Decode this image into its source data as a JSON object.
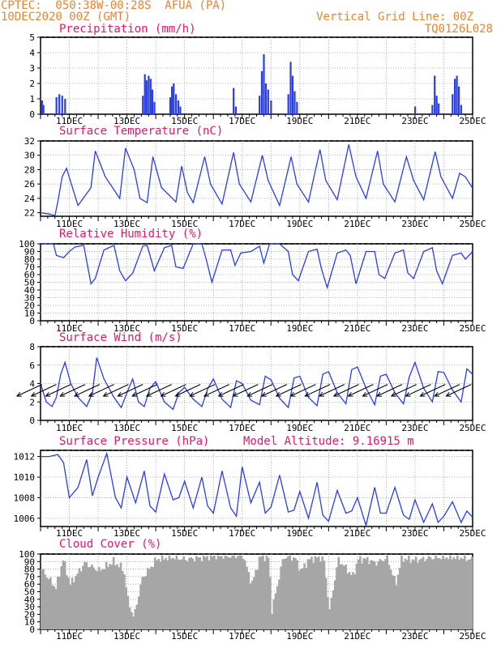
{
  "header": {
    "line1": "CPTEC:  050:38W-00:28S  AFUA (PA)",
    "line2": "10DEC2020 00Z (GMT)",
    "grid_note": "Vertical Grid Line: 00Z",
    "code": "TQ0126L028",
    "altitude_note": "Model Altitude: 9.16915 m"
  },
  "colors": {
    "header": "#e8852f",
    "title": "#e0186c",
    "series": "#2b3fe0",
    "cloud": "#a6a6a6"
  },
  "x_axis": {
    "tick_labels": [
      "11DEC",
      "13DEC",
      "15DEC",
      "17DEC",
      "19DEC",
      "21DEC",
      "23DEC",
      "25DEC"
    ],
    "tick_days": [
      1,
      3,
      5,
      7,
      9,
      11,
      13,
      15
    ],
    "range_days": [
      0,
      15
    ],
    "vertical_grid": "00Z"
  },
  "chart_data": [
    {
      "type": "bar",
      "title": "Precipitation (mm/h)",
      "ylim": [
        0,
        5
      ],
      "yticks": [
        "0",
        "1",
        "2",
        "3",
        "4",
        "5"
      ],
      "grid": true,
      "bars": [
        [
          0.05,
          0.9
        ],
        [
          0.1,
          0.6
        ],
        [
          0.55,
          1.1
        ],
        [
          0.65,
          1.3
        ],
        [
          0.75,
          1.2
        ],
        [
          0.85,
          1.0
        ],
        [
          3.55,
          1.2
        ],
        [
          3.62,
          2.6
        ],
        [
          3.68,
          2.2
        ],
        [
          3.75,
          2.5
        ],
        [
          3.82,
          2.3
        ],
        [
          3.88,
          1.6
        ],
        [
          3.95,
          0.8
        ],
        [
          4.5,
          1.1
        ],
        [
          4.56,
          1.8
        ],
        [
          4.62,
          2.0
        ],
        [
          4.7,
          1.3
        ],
        [
          4.78,
          0.9
        ],
        [
          4.85,
          0.5
        ],
        [
          6.7,
          1.7
        ],
        [
          6.78,
          0.5
        ],
        [
          7.6,
          1.2
        ],
        [
          7.68,
          2.8
        ],
        [
          7.75,
          3.9
        ],
        [
          7.82,
          2.0
        ],
        [
          7.9,
          1.6
        ],
        [
          8.0,
          0.9
        ],
        [
          8.6,
          1.3
        ],
        [
          8.68,
          3.4
        ],
        [
          8.75,
          2.5
        ],
        [
          8.82,
          1.5
        ],
        [
          8.9,
          0.8
        ],
        [
          13.0,
          0.5
        ],
        [
          13.6,
          0.6
        ],
        [
          13.68,
          2.5
        ],
        [
          13.75,
          1.2
        ],
        [
          13.82,
          0.7
        ],
        [
          14.3,
          1.3
        ],
        [
          14.38,
          2.3
        ],
        [
          14.45,
          2.5
        ],
        [
          14.52,
          1.8
        ],
        [
          14.6,
          0.6
        ]
      ]
    },
    {
      "type": "line",
      "title": "Surface Temperature (nC)",
      "ylim": [
        21.5,
        32
      ],
      "yticks": [
        "22",
        "24",
        "26",
        "28",
        "30",
        "32"
      ],
      "grid": true,
      "x": [
        0,
        0.3,
        0.5,
        0.6,
        0.75,
        0.9,
        1.3,
        1.75,
        1.9,
        2.25,
        2.75,
        2.95,
        3.25,
        3.45,
        3.7,
        3.9,
        4.2,
        4.7,
        4.9,
        5.1,
        5.3,
        5.7,
        5.9,
        6.3,
        6.7,
        6.9,
        7.3,
        7.7,
        7.9,
        8.3,
        8.7,
        8.9,
        9.3,
        9.7,
        9.9,
        10.3,
        10.7,
        10.95,
        11.3,
        11.7,
        11.9,
        12.3,
        12.7,
        12.95,
        13.3,
        13.7,
        13.9,
        14.3,
        14.55,
        14.75,
        15
      ],
      "y": [
        22,
        21.8,
        21.6,
        23.5,
        27,
        28.2,
        23,
        25.5,
        30.6,
        27,
        24,
        31,
        28,
        24,
        23.4,
        29.8,
        25.5,
        23.5,
        28.5,
        24.8,
        23.4,
        29.8,
        26,
        23.2,
        30.4,
        26,
        23.5,
        30,
        26.5,
        23,
        29.8,
        26,
        23.5,
        30.8,
        26.5,
        23.8,
        31.5,
        27,
        24,
        30.6,
        26,
        23.5,
        29.8,
        26.5,
        23.8,
        30.5,
        27,
        24,
        27.5,
        27,
        25.4
      ]
    },
    {
      "type": "line",
      "title": "Relative Humidity (%)",
      "ylim": [
        0,
        100
      ],
      "yticks": [
        "0",
        "10",
        "20",
        "30",
        "40",
        "50",
        "60",
        "70",
        "80",
        "90",
        "100"
      ],
      "grid": true,
      "x": [
        0,
        0.45,
        0.55,
        0.8,
        1.0,
        1.2,
        1.5,
        1.75,
        1.9,
        2.2,
        2.55,
        2.75,
        2.95,
        3.2,
        3.55,
        3.7,
        3.95,
        4.3,
        4.55,
        4.7,
        4.95,
        5.3,
        5.6,
        5.75,
        5.95,
        6.3,
        6.6,
        6.75,
        6.95,
        7.3,
        7.6,
        7.75,
        7.95,
        8.3,
        8.6,
        8.75,
        8.95,
        9.3,
        9.6,
        9.75,
        9.95,
        10.3,
        10.6,
        10.75,
        10.95,
        11.3,
        11.6,
        11.75,
        11.95,
        12.3,
        12.6,
        12.75,
        12.95,
        13.3,
        13.6,
        13.75,
        13.95,
        14.3,
        14.6,
        14.75,
        15
      ],
      "y": [
        100,
        100,
        85,
        82,
        90,
        96,
        98,
        48,
        55,
        92,
        98,
        65,
        52,
        62,
        97,
        98,
        65,
        95,
        98,
        70,
        68,
        100,
        100,
        80,
        50,
        92,
        92,
        72,
        88,
        90,
        97,
        75,
        100,
        100,
        90,
        60,
        52,
        90,
        93,
        68,
        43,
        88,
        92,
        85,
        48,
        90,
        90,
        60,
        55,
        88,
        92,
        62,
        55,
        90,
        95,
        65,
        48,
        85,
        88,
        80,
        90
      ]
    },
    {
      "type": "line",
      "title": "Surface Wind (m/s)",
      "ylim": [
        0,
        8
      ],
      "yticks": [
        "0",
        "2",
        "4",
        "6",
        "8"
      ],
      "grid": true,
      "x": [
        0,
        0.2,
        0.4,
        0.55,
        0.7,
        0.85,
        1.05,
        1.3,
        1.6,
        1.8,
        1.95,
        2.2,
        2.55,
        2.8,
        3.0,
        3.2,
        3.4,
        3.6,
        3.8,
        4.0,
        4.3,
        4.6,
        4.8,
        5.0,
        5.3,
        5.6,
        5.8,
        6.0,
        6.3,
        6.6,
        6.8,
        7.0,
        7.3,
        7.6,
        7.8,
        8.0,
        8.3,
        8.6,
        8.8,
        9.0,
        9.3,
        9.6,
        9.8,
        10.0,
        10.3,
        10.6,
        10.8,
        11.0,
        11.3,
        11.6,
        11.8,
        12.0,
        12.3,
        12.6,
        12.8,
        13.0,
        13.3,
        13.6,
        13.8,
        14.0,
        14.3,
        14.6,
        14.8,
        15
      ],
      "y": [
        4,
        2,
        1.5,
        2.5,
        5,
        6.3,
        4,
        2.5,
        1.5,
        3,
        6.8,
        4.5,
        2.5,
        1.4,
        3,
        4.5,
        2,
        1.5,
        3.5,
        4.2,
        2,
        1.2,
        3,
        3.6,
        2.3,
        1.5,
        3.4,
        4.5,
        2.3,
        1.4,
        4.3,
        4,
        2.2,
        1.7,
        4.8,
        4.4,
        2.4,
        1.4,
        4.6,
        4.8,
        2.5,
        1.6,
        5,
        5.3,
        3,
        1.8,
        5.5,
        5.8,
        3.5,
        1.7,
        4.8,
        5,
        3,
        1.8,
        4.7,
        6.3,
        3.5,
        2,
        5.3,
        5.2,
        3.3,
        2,
        5.6,
        5
      ]
    },
    {
      "type": "line",
      "title": "Surface Pressure (hPa)",
      "ylim": [
        1005.2,
        1012.6
      ],
      "yticks": [
        "1006",
        "1008",
        "1010",
        "1012"
      ],
      "grid": true,
      "x": [
        0,
        0.3,
        0.6,
        0.8,
        1.0,
        1.3,
        1.6,
        1.8,
        2.0,
        2.3,
        2.6,
        2.8,
        3.0,
        3.3,
        3.6,
        3.8,
        4.0,
        4.3,
        4.6,
        4.8,
        5.0,
        5.3,
        5.6,
        5.8,
        6.0,
        6.3,
        6.6,
        6.8,
        7.0,
        7.3,
        7.6,
        7.8,
        8.0,
        8.3,
        8.6,
        8.8,
        9.0,
        9.3,
        9.6,
        9.8,
        10.0,
        10.3,
        10.6,
        10.8,
        11.0,
        11.3,
        11.6,
        11.8,
        12.0,
        12.3,
        12.6,
        12.8,
        13.0,
        13.3,
        13.6,
        13.8,
        14.0,
        14.3,
        14.6,
        14.8,
        15
      ],
      "y": [
        1012,
        1012,
        1012.2,
        1011.4,
        1008,
        1009,
        1011.7,
        1008.2,
        1010,
        1012.3,
        1008,
        1007,
        1010,
        1007.5,
        1010.6,
        1007.2,
        1006.6,
        1010.3,
        1007.8,
        1008,
        1009.6,
        1007,
        1010,
        1007.2,
        1006.5,
        1010.6,
        1007,
        1006.2,
        1011,
        1007.5,
        1009.5,
        1006.5,
        1007.1,
        1010.2,
        1006.6,
        1006.8,
        1008.6,
        1006,
        1009.5,
        1006.3,
        1005.7,
        1008.7,
        1006.5,
        1006.7,
        1008,
        1005.3,
        1009,
        1006.5,
        1006.5,
        1009,
        1006.3,
        1005.9,
        1007.8,
        1005.6,
        1007.4,
        1005.6,
        1006.2,
        1007.6,
        1005.6,
        1006.7,
        1006.1
      ]
    },
    {
      "type": "bar",
      "title": "Cloud Cover (%)",
      "ylim": [
        0,
        100
      ],
      "yticks": [
        "0",
        "10",
        "20",
        "30",
        "40",
        "50",
        "60",
        "70",
        "80",
        "90",
        "100"
      ],
      "grid": true,
      "x": [
        0,
        0.5,
        0.75,
        1.0,
        1.5,
        2.0,
        2.5,
        2.85,
        3.0,
        3.2,
        3.5,
        4.0,
        4.5,
        5.0,
        5.5,
        6.0,
        6.5,
        7.0,
        7.3,
        7.6,
        7.9,
        8.0,
        8.4,
        8.8,
        9.0,
        9.3,
        9.6,
        9.8,
        10.0,
        10.3,
        10.6,
        10.8,
        11.0,
        11.3,
        11.6,
        12.0,
        12.3,
        12.5,
        13.0,
        13.5,
        14.0,
        14.5,
        15
      ],
      "y": [
        80,
        55,
        93,
        60,
        88,
        78,
        90,
        80,
        40,
        15,
        68,
        93,
        96,
        93,
        95,
        98,
        97,
        98,
        60,
        97,
        95,
        25,
        96,
        95,
        78,
        93,
        95,
        94,
        25,
        93,
        80,
        70,
        93,
        93,
        88,
        95,
        60,
        94,
        92,
        95,
        96,
        96,
        92
      ]
    }
  ],
  "wind_arrows": {
    "angle_deg": 205,
    "days": [
      0.05,
      0.55,
      1.05,
      1.55,
      2.05,
      2.55,
      3.05,
      3.55,
      4.05,
      4.55,
      5.05,
      5.55,
      6.05,
      6.55,
      7.05,
      7.55,
      8.05,
      8.55,
      9.05,
      9.55,
      10.05,
      10.55,
      11.05,
      11.55,
      12.05,
      12.55,
      13.05,
      13.55,
      14.05,
      14.55,
      14.95
    ]
  }
}
